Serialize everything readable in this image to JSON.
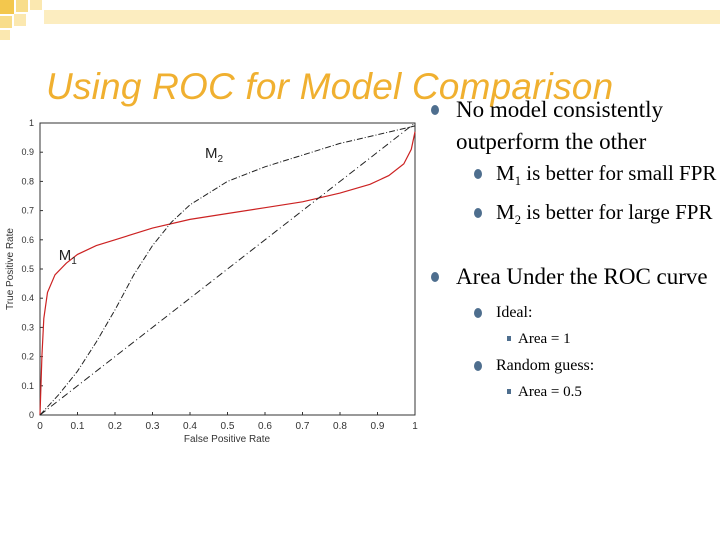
{
  "title": "Using ROC for Model Comparison",
  "bullets": {
    "b1": "No model consistently outperform the other",
    "b1a_pre": "M",
    "b1a_sub": "1",
    "b1a_post": " is better for small FPR",
    "b1b_pre": "M",
    "b1b_sub": "2",
    "b1b_post": " is better for large FPR",
    "b2": "Area Under the ROC curve",
    "ideal": "Ideal:",
    "ideal_area": "Area = 1",
    "random": "Random guess:",
    "random_area": "Area = 0.5"
  },
  "colors": {
    "accent": "#f0b030",
    "bullet": "#4e6e8e",
    "m1": "#cc2222"
  },
  "chart_data": {
    "type": "line",
    "title": "",
    "xlabel": "False Positive Rate",
    "ylabel": "True Positive Rate",
    "xlim": [
      0,
      1
    ],
    "ylim": [
      0,
      1
    ],
    "xticks": [
      "0",
      "0.1",
      "0.2",
      "0.3",
      "0.4",
      "0.5",
      "0.6",
      "0.7",
      "0.8",
      "0.9",
      "1"
    ],
    "yticks": [
      "0",
      "0.1",
      "0.2",
      "0.3",
      "0.4",
      "0.5",
      "0.6",
      "0.7",
      "0.8",
      "0.9",
      "1"
    ],
    "grid": false,
    "series": [
      {
        "name": "M1",
        "x": [
          0,
          0.005,
          0.01,
          0.02,
          0.04,
          0.07,
          0.1,
          0.15,
          0.2,
          0.3,
          0.4,
          0.5,
          0.6,
          0.7,
          0.8,
          0.88,
          0.93,
          0.97,
          0.99,
          1.0
        ],
        "y": [
          0,
          0.2,
          0.33,
          0.42,
          0.48,
          0.52,
          0.55,
          0.58,
          0.6,
          0.64,
          0.67,
          0.69,
          0.71,
          0.73,
          0.76,
          0.79,
          0.82,
          0.86,
          0.91,
          0.97
        ]
      },
      {
        "name": "M2",
        "x": [
          0,
          0.05,
          0.1,
          0.15,
          0.2,
          0.25,
          0.3,
          0.35,
          0.4,
          0.5,
          0.6,
          0.7,
          0.8,
          0.9,
          1.0
        ],
        "y": [
          0,
          0.07,
          0.15,
          0.25,
          0.36,
          0.48,
          0.58,
          0.66,
          0.72,
          0.8,
          0.85,
          0.89,
          0.93,
          0.96,
          0.99
        ]
      },
      {
        "name": "random",
        "x": [
          0,
          1
        ],
        "y": [
          0,
          1
        ]
      }
    ],
    "annotations": [
      {
        "text": "M",
        "sub": "2",
        "x": 0.44,
        "y": 0.88
      },
      {
        "text": "M",
        "sub": "1",
        "x": 0.05,
        "y": 0.53
      }
    ]
  }
}
